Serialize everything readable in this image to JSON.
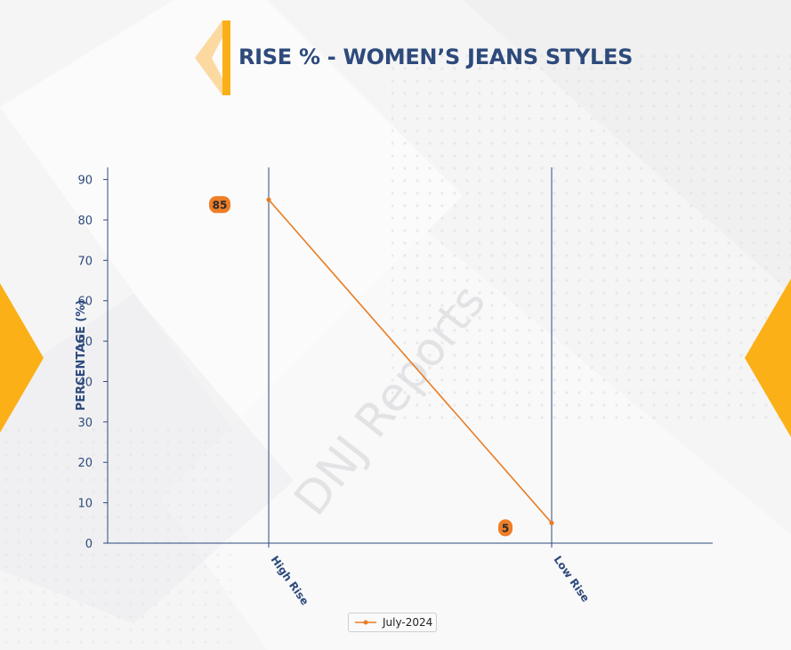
{
  "page": {
    "watermark": "DNJ Reports"
  },
  "colors": {
    "title": "#2d4a7b",
    "axis": "#2d4a7b",
    "series": "#e87d24",
    "label_bg": "#ee7e27",
    "accent": "#fbb017"
  },
  "chart_data": {
    "type": "line",
    "title": "RISE % - WOMEN’S JEANS STYLES",
    "xlabel": "",
    "ylabel": "PERCENTAGE (%)",
    "categories": [
      "High Rise",
      "Low Rise"
    ],
    "series": [
      {
        "name": "July-2024",
        "values": [
          85,
          5
        ]
      }
    ],
    "ylim": [
      0,
      93
    ],
    "yticks": [
      0,
      10,
      20,
      30,
      40,
      50,
      60,
      70,
      80,
      90
    ],
    "data_labels": [
      "85",
      "5"
    ],
    "legend_position": "bottom-center",
    "grid": false
  }
}
